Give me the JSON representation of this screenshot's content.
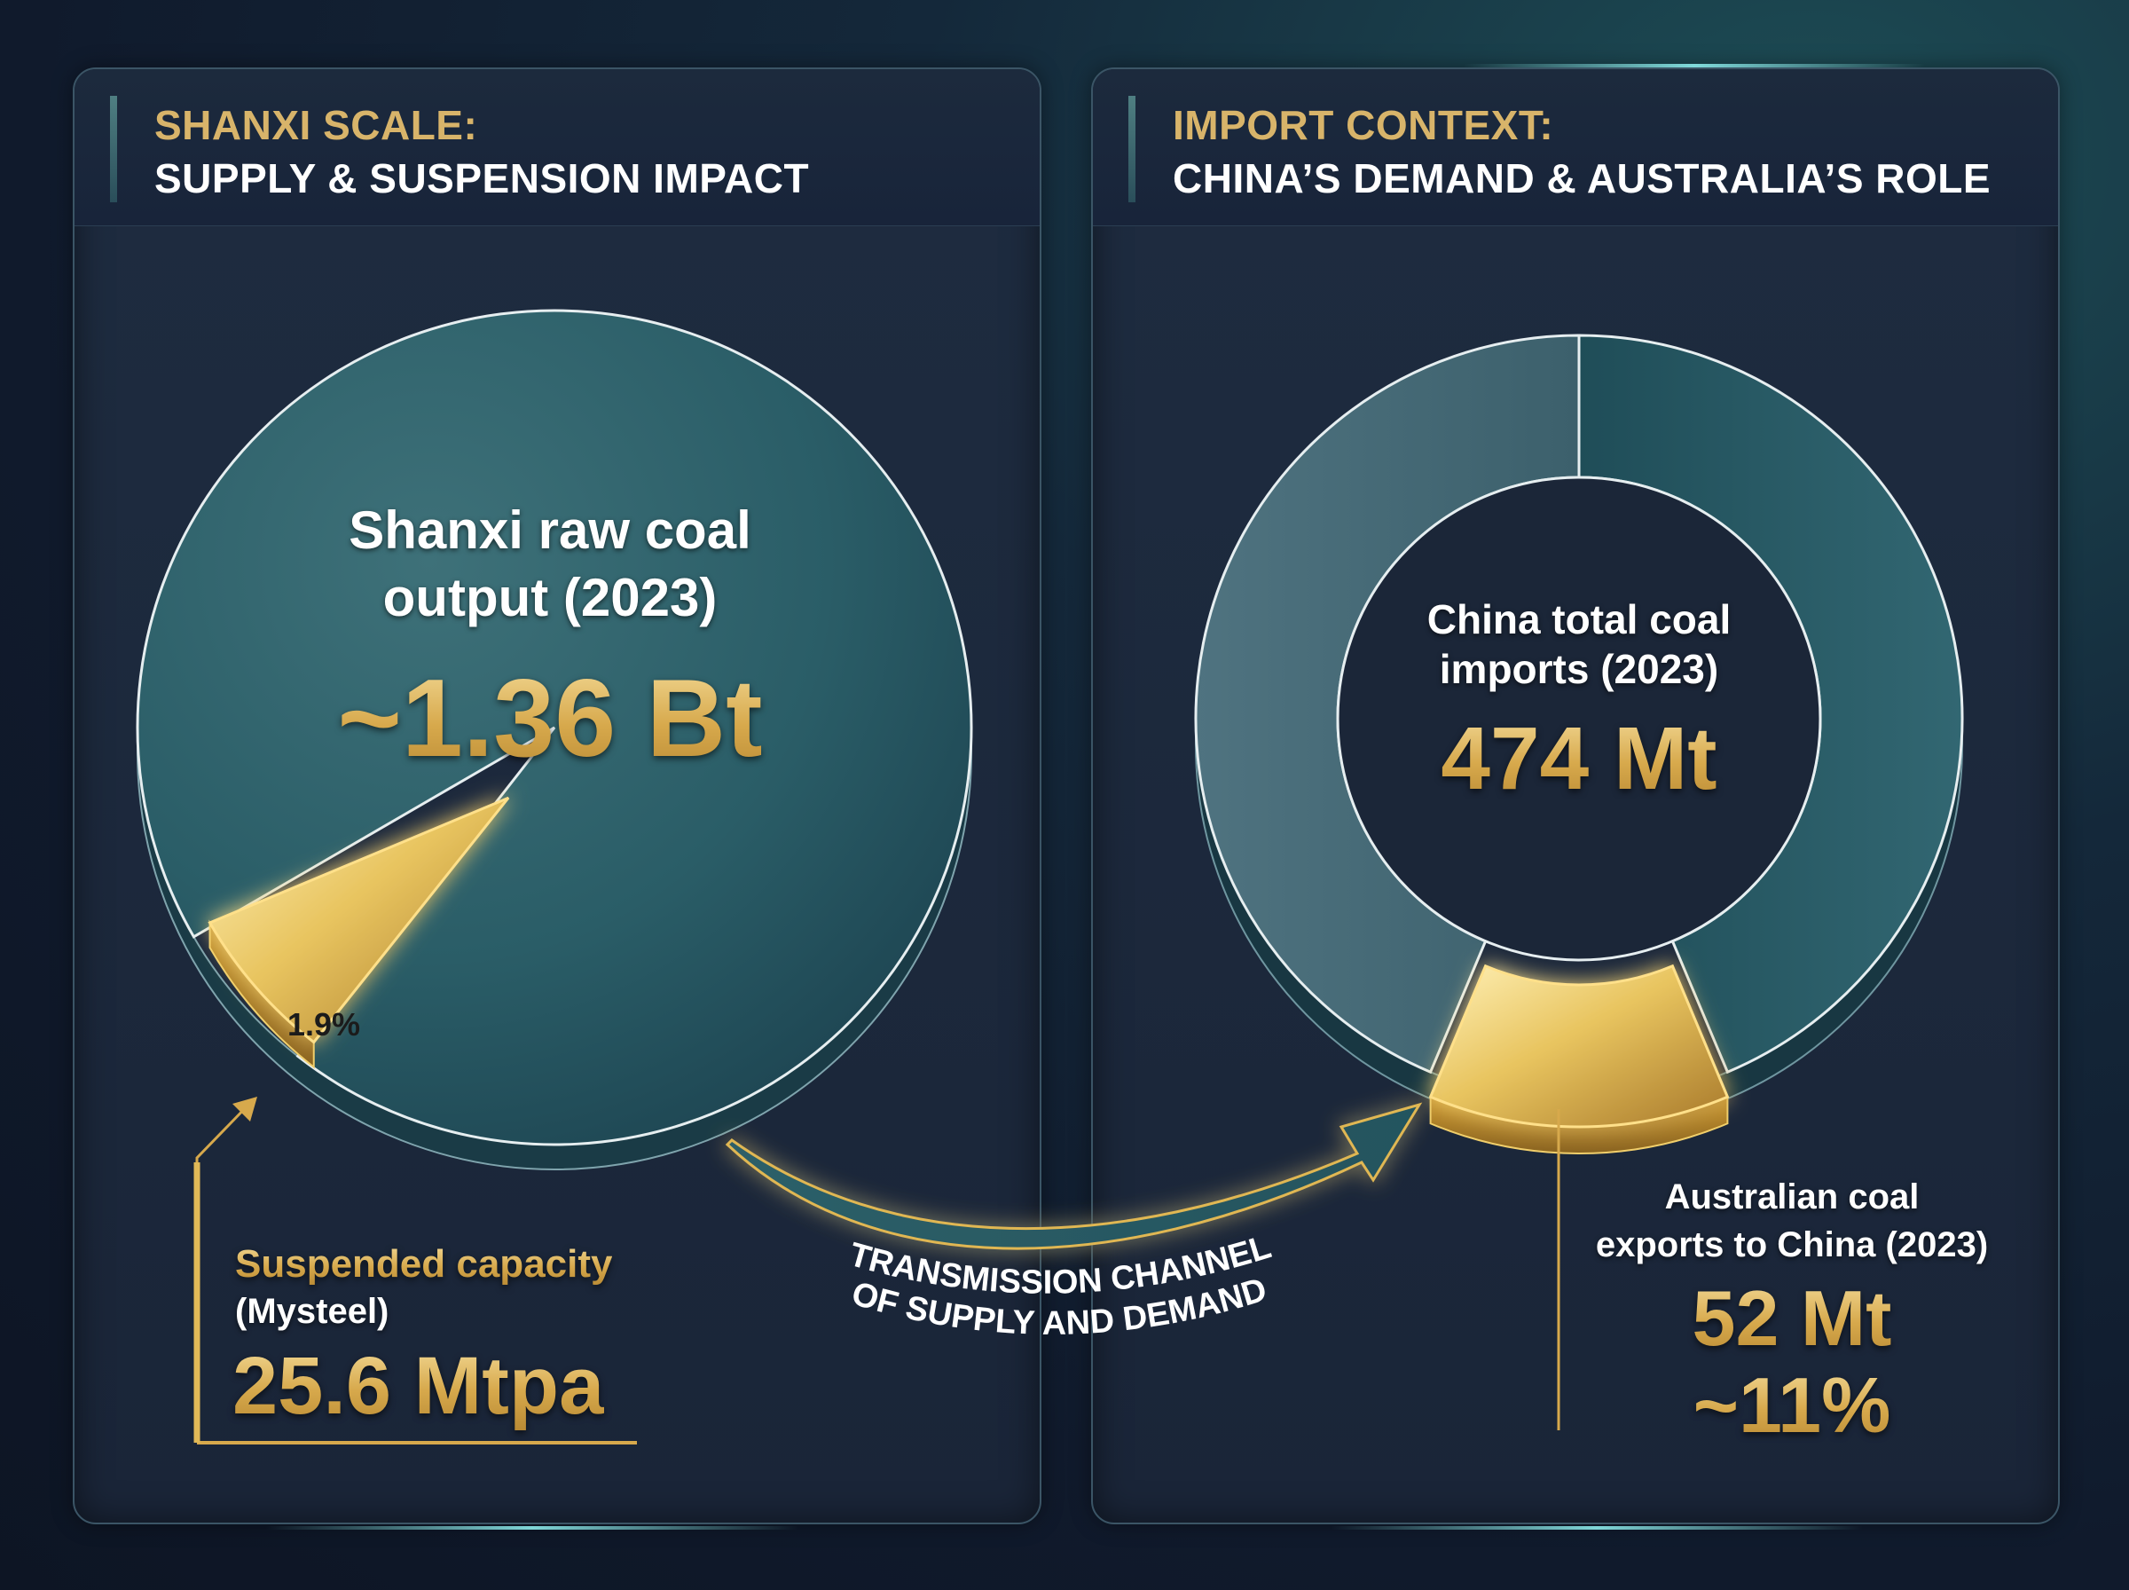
{
  "left_panel": {
    "title": "SHANXI SCALE:",
    "subtitle": "SUPPLY & SUSPENSION IMPACT",
    "pie_label_line1": "Shanxi raw coal",
    "pie_label_line2": "output (2023)",
    "pie_value": "~1.36 Bt",
    "slice_label": "1.9%",
    "callout_label": "Suspended capacity",
    "callout_source": "(Mysteel)",
    "callout_value": "25.6 Mtpa"
  },
  "right_panel": {
    "title": "IMPORT CONTEXT:",
    "subtitle": "CHINA’S DEMAND & AUSTRALIA’S ROLE",
    "donut_label_line1": "China total coal",
    "donut_label_line2": "imports (2023)",
    "donut_value": "474 Mt",
    "callout_label_line1": "Australian coal",
    "callout_label_line2": "exports to China (2023)",
    "callout_value": "52 Mt",
    "callout_share": "~11%"
  },
  "arrow": {
    "line1": "TRANSMISSION CHANNEL",
    "line2": "OF SUPPLY AND DEMAND"
  },
  "colors": {
    "gold": "#d7a94c",
    "teal": "#2e6570",
    "teal_light": "#4c6f7c",
    "background": "#131d2e"
  },
  "chart_data": [
    {
      "type": "pie",
      "title": "Shanxi raw coal output (2023)",
      "total_label": "~1.36 Bt",
      "slices": [
        {
          "label": "1.9%",
          "value": 1.9,
          "highlight": true
        },
        {
          "label": "",
          "value": 98.1
        }
      ],
      "annotation": "Suspended capacity (Mysteel) 25.6 Mtpa"
    },
    {
      "type": "pie",
      "title": "China total coal imports (2023)",
      "total_label": "474 Mt",
      "slices": [
        {
          "label": "52 Mt ~11%",
          "value": 11,
          "highlight": true
        },
        {
          "label": "",
          "value": 89
        }
      ],
      "annotation": "Australian coal exports to China (2023)"
    }
  ]
}
